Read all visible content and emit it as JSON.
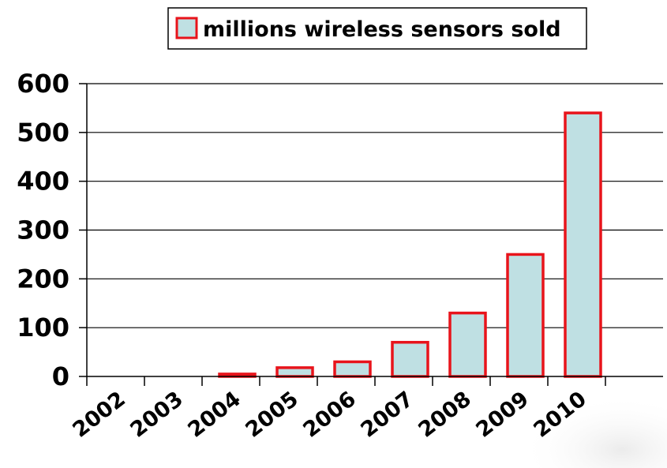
{
  "chart_data": {
    "type": "bar",
    "categories": [
      "2002",
      "2003",
      "2004",
      "2005",
      "2006",
      "2007",
      "2008",
      "2009",
      "2010"
    ],
    "series": [
      {
        "name": "millions wireless sensors sold",
        "values": [
          0,
          0,
          5,
          18,
          30,
          70,
          130,
          250,
          540
        ]
      }
    ],
    "ylim": [
      0,
      600
    ],
    "yticks": [
      0,
      100,
      200,
      300,
      400,
      500,
      600
    ],
    "grid": true,
    "legend_position": "top-center",
    "colors": {
      "bar_fill": "#bfe0e3",
      "bar_stroke": "#e8141b",
      "grid": "#000000",
      "axis": "#000000"
    }
  }
}
